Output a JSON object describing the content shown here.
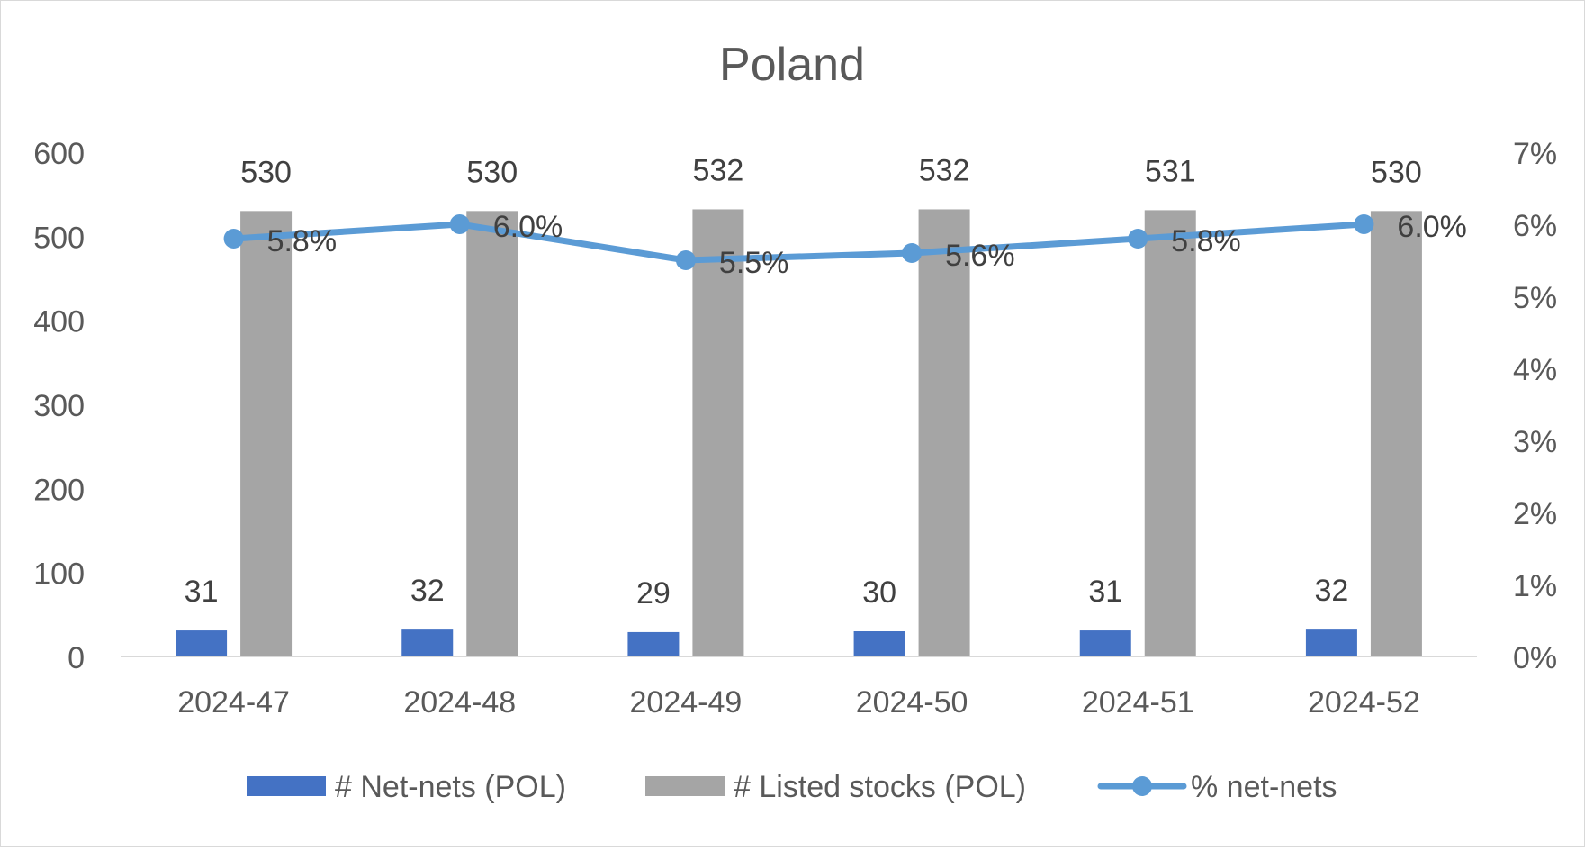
{
  "chart_data": {
    "type": "bar",
    "title": "Poland",
    "categories": [
      "2024-47",
      "2024-48",
      "2024-49",
      "2024-50",
      "2024-51",
      "2024-52"
    ],
    "series": [
      {
        "name": "# Net-nets (POL)",
        "type": "bar",
        "axis": "left",
        "color": "#4472c4",
        "values": [
          31,
          32,
          29,
          30,
          31,
          32
        ],
        "labels": [
          "31",
          "32",
          "29",
          "30",
          "31",
          "32"
        ]
      },
      {
        "name": "# Listed stocks (POL)",
        "type": "bar",
        "axis": "left",
        "color": "#a5a5a5",
        "values": [
          530,
          530,
          532,
          532,
          531,
          530
        ],
        "labels": [
          "530",
          "530",
          "532",
          "532",
          "531",
          "530"
        ]
      },
      {
        "name": "% net-nets",
        "type": "line",
        "axis": "right",
        "color": "#5b9bd5",
        "values": [
          5.8,
          6.0,
          5.5,
          5.6,
          5.8,
          6.0
        ],
        "labels": [
          "5.8%",
          "6.0%",
          "5.5%",
          "5.6%",
          "5.8%",
          "6.0%"
        ]
      }
    ],
    "y_left": {
      "min": 0,
      "max": 600,
      "ticks": [
        "0",
        "100",
        "200",
        "300",
        "400",
        "500",
        "600"
      ]
    },
    "y_right": {
      "min": 0,
      "max": 7,
      "ticks": [
        "0%",
        "1%",
        "2%",
        "3%",
        "4%",
        "5%",
        "6%",
        "7%"
      ]
    },
    "xlabel": "",
    "ylabel": "",
    "grid": false,
    "legend_position": "bottom",
    "colors": {
      "text": "#595959",
      "axis": "#d9d9d9"
    }
  }
}
